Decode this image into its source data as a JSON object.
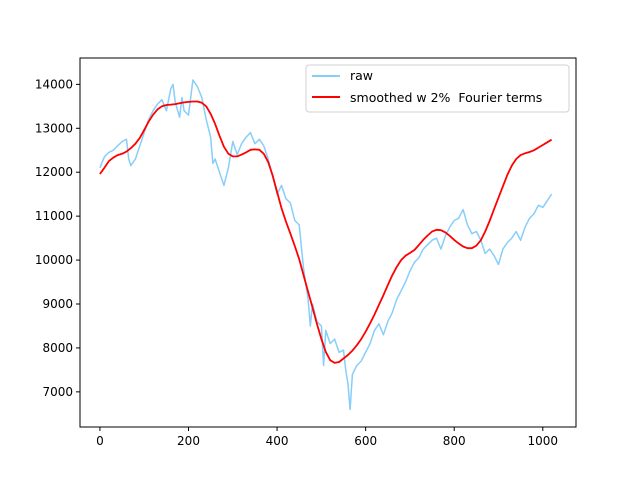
{
  "chart_data": {
    "type": "line",
    "title": "",
    "xlabel": "",
    "ylabel": "",
    "xlim": [
      -45,
      1075
    ],
    "ylim": [
      6200,
      14600
    ],
    "xticks": [
      0,
      200,
      400,
      600,
      800,
      1000
    ],
    "yticks": [
      7000,
      8000,
      9000,
      10000,
      11000,
      12000,
      13000,
      14000
    ],
    "grid": false,
    "legend": {
      "placement": "top-right"
    },
    "series": [
      {
        "name": "raw",
        "color": "#87cefa",
        "x": [
          0,
          10,
          20,
          30,
          40,
          50,
          60,
          65,
          70,
          80,
          90,
          100,
          110,
          120,
          130,
          140,
          150,
          160,
          165,
          170,
          180,
          185,
          190,
          200,
          205,
          210,
          220,
          230,
          240,
          250,
          255,
          260,
          270,
          280,
          290,
          300,
          310,
          320,
          330,
          340,
          350,
          360,
          370,
          380,
          390,
          400,
          410,
          420,
          430,
          440,
          450,
          460,
          470,
          475,
          480,
          490,
          500,
          505,
          510,
          520,
          530,
          540,
          550,
          555,
          560,
          565,
          570,
          580,
          590,
          600,
          610,
          620,
          630,
          640,
          650,
          660,
          670,
          680,
          690,
          700,
          710,
          720,
          730,
          740,
          750,
          760,
          770,
          780,
          790,
          800,
          810,
          820,
          830,
          840,
          850,
          860,
          870,
          880,
          890,
          900,
          910,
          920,
          930,
          940,
          950,
          960,
          970,
          980,
          990,
          1000,
          1010,
          1020
        ],
        "y": [
          12100,
          12350,
          12450,
          12500,
          12600,
          12700,
          12750,
          12300,
          12150,
          12300,
          12600,
          12900,
          13200,
          13400,
          13550,
          13650,
          13400,
          13900,
          14000,
          13600,
          13250,
          13700,
          13400,
          13300,
          13700,
          14100,
          13950,
          13700,
          13200,
          12800,
          12200,
          12300,
          12000,
          11700,
          12100,
          12700,
          12400,
          12650,
          12800,
          12900,
          12650,
          12750,
          12600,
          12300,
          11900,
          11500,
          11700,
          11400,
          11300,
          10900,
          10800,
          9800,
          9100,
          8500,
          9000,
          8600,
          8500,
          7600,
          8400,
          8100,
          8200,
          7900,
          7950,
          7500,
          7200,
          6600,
          7400,
          7600,
          7700,
          7900,
          8100,
          8400,
          8550,
          8300,
          8600,
          8800,
          9100,
          9300,
          9500,
          9750,
          9950,
          10050,
          10250,
          10350,
          10450,
          10500,
          10250,
          10550,
          10750,
          10900,
          10950,
          11150,
          10800,
          10600,
          10650,
          10450,
          10150,
          10250,
          10100,
          9900,
          10250,
          10400,
          10500,
          10650,
          10450,
          10750,
          10950,
          11050,
          11250,
          11200,
          11350,
          11500
        ]
      },
      {
        "name": "smoothed w 2%  Fourier terms",
        "color": "#ff0000",
        "x": [
          0,
          10,
          20,
          30,
          40,
          50,
          60,
          70,
          80,
          90,
          100,
          110,
          120,
          130,
          140,
          150,
          160,
          170,
          180,
          190,
          200,
          210,
          220,
          230,
          240,
          250,
          260,
          270,
          280,
          290,
          300,
          310,
          320,
          330,
          340,
          350,
          360,
          370,
          380,
          390,
          400,
          410,
          420,
          430,
          440,
          450,
          460,
          470,
          480,
          490,
          500,
          510,
          520,
          530,
          540,
          550,
          560,
          570,
          580,
          590,
          600,
          610,
          620,
          630,
          640,
          650,
          660,
          670,
          680,
          690,
          700,
          710,
          720,
          730,
          740,
          750,
          760,
          770,
          780,
          790,
          800,
          810,
          820,
          830,
          840,
          850,
          860,
          870,
          880,
          890,
          900,
          910,
          920,
          930,
          940,
          950,
          960,
          970,
          980,
          990,
          1000,
          1010,
          1020
        ],
        "y": [
          11960,
          12100,
          12250,
          12330,
          12390,
          12420,
          12470,
          12550,
          12650,
          12780,
          12960,
          13150,
          13310,
          13430,
          13500,
          13530,
          13540,
          13550,
          13570,
          13590,
          13600,
          13610,
          13610,
          13580,
          13500,
          13330,
          13100,
          12830,
          12580,
          12420,
          12360,
          12360,
          12400,
          12450,
          12510,
          12520,
          12510,
          12420,
          12230,
          11930,
          11550,
          11180,
          10880,
          10600,
          10320,
          10020,
          9650,
          9280,
          8920,
          8550,
          8200,
          7910,
          7720,
          7660,
          7680,
          7760,
          7840,
          7940,
          8060,
          8200,
          8370,
          8560,
          8760,
          8980,
          9200,
          9430,
          9650,
          9840,
          10000,
          10100,
          10160,
          10230,
          10340,
          10460,
          10560,
          10650,
          10690,
          10680,
          10630,
          10550,
          10460,
          10380,
          10310,
          10270,
          10270,
          10330,
          10450,
          10650,
          10890,
          11160,
          11420,
          11680,
          11940,
          12150,
          12300,
          12390,
          12430,
          12460,
          12500,
          12560,
          12620,
          12680,
          12740
        ]
      }
    ]
  }
}
